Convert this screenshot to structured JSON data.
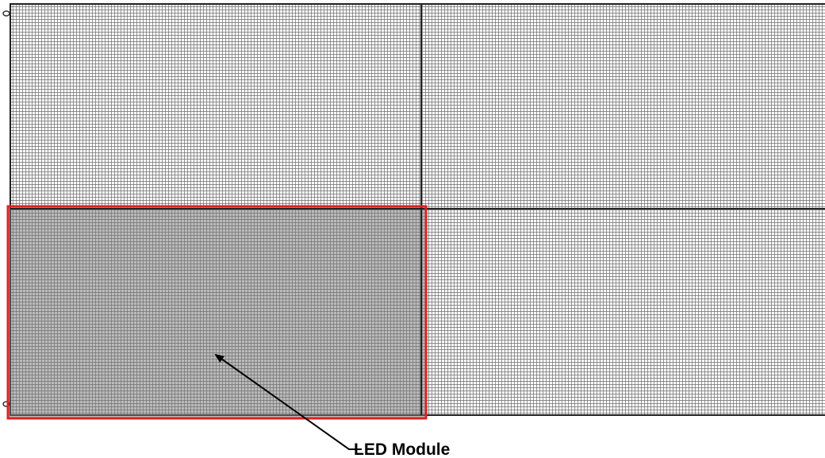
{
  "callout": {
    "label": "LED Module"
  }
}
